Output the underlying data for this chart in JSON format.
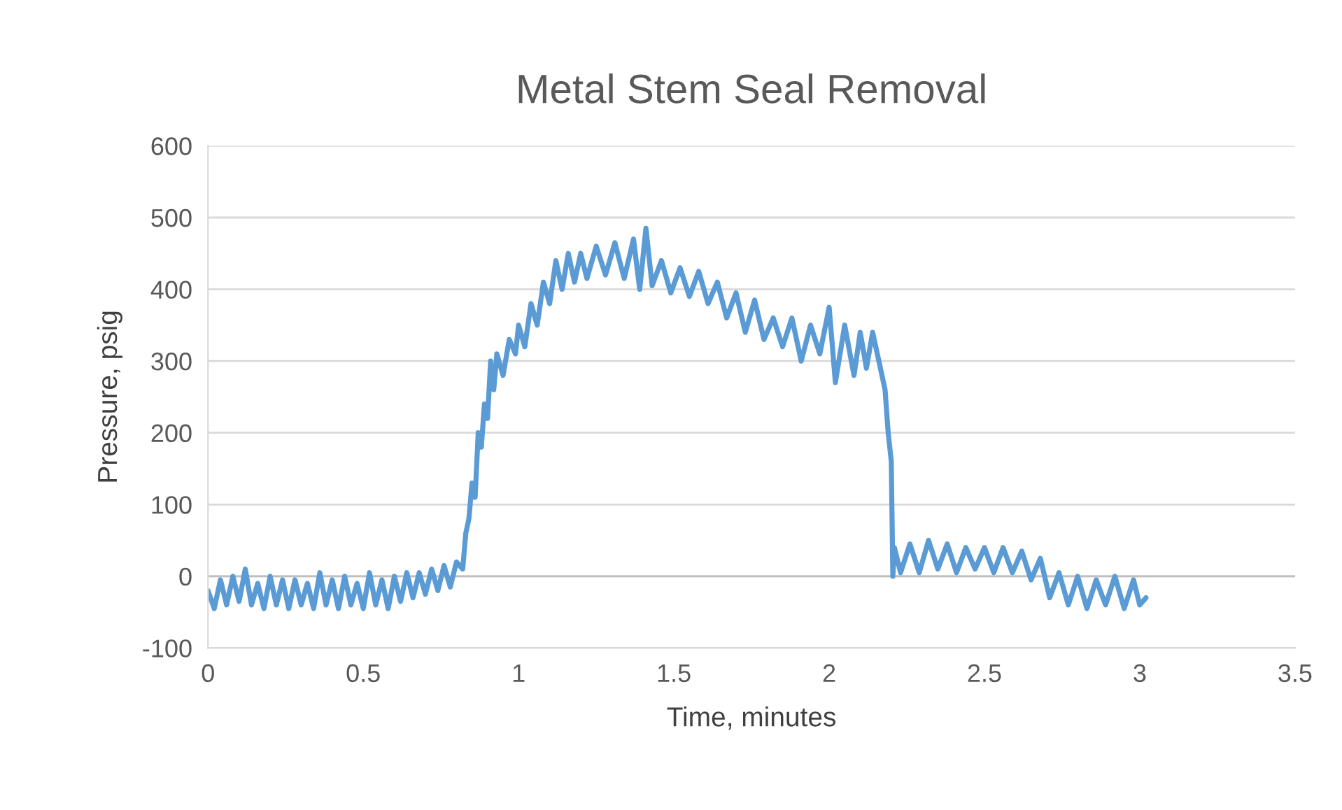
{
  "chart_data": {
    "type": "line",
    "title": "Metal Stem Seal Removal",
    "xlabel": "Time, minutes",
    "ylabel": "Pressure, psig",
    "x": [
      0,
      0.02,
      0.04,
      0.06,
      0.08,
      0.1,
      0.12,
      0.14,
      0.16,
      0.18,
      0.2,
      0.22,
      0.24,
      0.26,
      0.28,
      0.3,
      0.32,
      0.34,
      0.36,
      0.38,
      0.4,
      0.42,
      0.44,
      0.46,
      0.48,
      0.5,
      0.52,
      0.54,
      0.56,
      0.58,
      0.6,
      0.62,
      0.64,
      0.66,
      0.68,
      0.7,
      0.72,
      0.74,
      0.76,
      0.78,
      0.8,
      0.82,
      0.83,
      0.84,
      0.85,
      0.86,
      0.87,
      0.88,
      0.89,
      0.9,
      0.91,
      0.92,
      0.93,
      0.95,
      0.97,
      0.99,
      1.0,
      1.02,
      1.04,
      1.06,
      1.08,
      1.1,
      1.12,
      1.14,
      1.16,
      1.18,
      1.2,
      1.22,
      1.25,
      1.28,
      1.31,
      1.34,
      1.37,
      1.39,
      1.41,
      1.43,
      1.46,
      1.49,
      1.52,
      1.55,
      1.58,
      1.61,
      1.64,
      1.67,
      1.7,
      1.73,
      1.76,
      1.79,
      1.82,
      1.85,
      1.88,
      1.91,
      1.94,
      1.97,
      2.0,
      2.02,
      2.05,
      2.08,
      2.1,
      2.12,
      2.14,
      2.16,
      2.18,
      2.19,
      2.2,
      2.205,
      2.21,
      2.23,
      2.26,
      2.29,
      2.32,
      2.35,
      2.38,
      2.41,
      2.44,
      2.47,
      2.5,
      2.53,
      2.56,
      2.59,
      2.62,
      2.65,
      2.68,
      2.71,
      2.74,
      2.77,
      2.8,
      2.83,
      2.86,
      2.89,
      2.92,
      2.95,
      2.98,
      3.0,
      3.02
    ],
    "series": [
      {
        "color": "#5b9bd5",
        "values": [
          -20,
          -45,
          -5,
          -40,
          0,
          -35,
          10,
          -40,
          -10,
          -45,
          0,
          -40,
          -5,
          -45,
          -5,
          -40,
          -10,
          -45,
          5,
          -40,
          -5,
          -45,
          0,
          -40,
          -10,
          -45,
          5,
          -40,
          -5,
          -45,
          0,
          -35,
          5,
          -30,
          5,
          -25,
          10,
          -20,
          15,
          -15,
          20,
          10,
          60,
          80,
          130,
          110,
          200,
          180,
          240,
          220,
          300,
          260,
          310,
          280,
          330,
          310,
          350,
          320,
          380,
          350,
          410,
          380,
          440,
          400,
          450,
          410,
          450,
          415,
          460,
          420,
          465,
          415,
          470,
          400,
          485,
          405,
          440,
          395,
          430,
          390,
          425,
          380,
          410,
          360,
          395,
          340,
          385,
          330,
          360,
          320,
          360,
          300,
          350,
          310,
          375,
          270,
          350,
          280,
          340,
          290,
          340,
          300,
          260,
          200,
          160,
          0,
          40,
          5,
          45,
          5,
          50,
          10,
          45,
          5,
          40,
          10,
          40,
          5,
          40,
          5,
          35,
          -5,
          25,
          -30,
          5,
          -40,
          0,
          -45,
          -5,
          -40,
          0,
          -45,
          -5,
          -40,
          -30
        ]
      }
    ],
    "xlim": [
      0,
      3.5
    ],
    "xticks": [
      0,
      0.5,
      1,
      1.5,
      2,
      2.5,
      3,
      3.5
    ],
    "ylim": [
      -100,
      600
    ],
    "yticks": [
      -100,
      0,
      100,
      200,
      300,
      400,
      500,
      600
    ],
    "grid": "y",
    "marker": "none",
    "line_style": "solid",
    "legend": false
  }
}
